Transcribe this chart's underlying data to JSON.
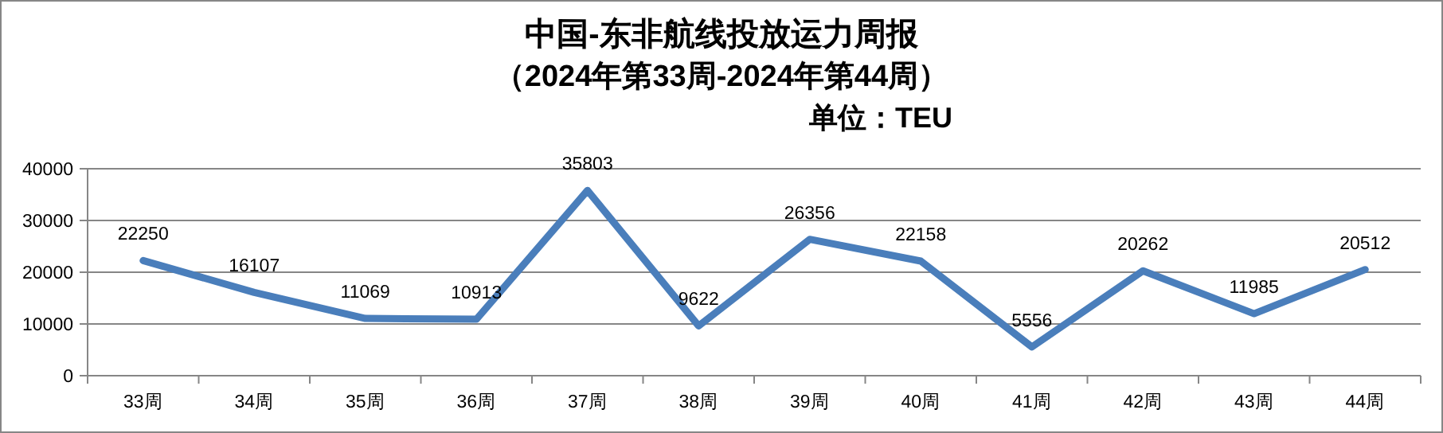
{
  "chart_data": {
    "type": "line",
    "title": "中国-东非航线投放运力周报",
    "subtitle": "（2024年第33周-2024年第44周）",
    "annotations": [
      "单位：TEU"
    ],
    "categories": [
      "33周",
      "34周",
      "35周",
      "36周",
      "37周",
      "38周",
      "39周",
      "40周",
      "41周",
      "42周",
      "43周",
      "44周"
    ],
    "values": [
      22250,
      16107,
      11069,
      10913,
      35803,
      9622,
      26356,
      22158,
      5556,
      20262,
      11985,
      20512
    ],
    "color": "#4a7ebb",
    "ylim": [
      0,
      40000
    ],
    "yticks": [
      0,
      10000,
      20000,
      30000,
      40000
    ],
    "grid": "y",
    "data_labels": true
  }
}
